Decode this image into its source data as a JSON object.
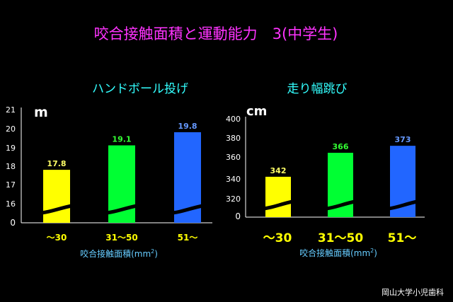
{
  "title": "咬合接触面積と運動能力　3(中学生)",
  "credit": "岡山大学小児歯科",
  "colors": {
    "title": "#ff33ff",
    "subtitle": "#33ffff",
    "category_label": "#ffff00",
    "bar_label": "#66ccff",
    "value_label_1": "#ffff66",
    "value_label_2": "#33ff33",
    "value_label_3": "#6699ff",
    "bar_1": "#ffff00",
    "bar_2": "#00ff33",
    "bar_3": "#2266ff"
  },
  "chart_data": [
    {
      "type": "bar",
      "title": "ハンドボール投げ",
      "unit": "m",
      "xlabel": "咬合接触面積(mm",
      "xlabel_sup": "2",
      "xlabel_close": ")",
      "categories": [
        "〜30",
        "31〜50",
        "51〜"
      ],
      "values": [
        17.8,
        19.1,
        19.8
      ],
      "value_labels": [
        "17.8",
        "19.1",
        "19.8"
      ],
      "yticks": [
        "21",
        "20",
        "19",
        "18",
        "17",
        "16",
        "0"
      ],
      "ylim": [
        15,
        21
      ],
      "axis_break": true,
      "grid": false
    },
    {
      "type": "bar",
      "title": "走り幅跳び",
      "unit": "cm",
      "xlabel": "咬合接触面積(mm",
      "xlabel_sup": "2",
      "xlabel_close": ")",
      "categories": [
        "〜30",
        "31〜50",
        "51〜"
      ],
      "values": [
        342,
        366,
        373
      ],
      "value_labels": [
        "342",
        "366",
        "373"
      ],
      "yticks": [
        "400",
        "380",
        "360",
        "340",
        "320",
        "0"
      ],
      "ylim": [
        300,
        400
      ],
      "axis_break": true,
      "grid": false
    }
  ]
}
